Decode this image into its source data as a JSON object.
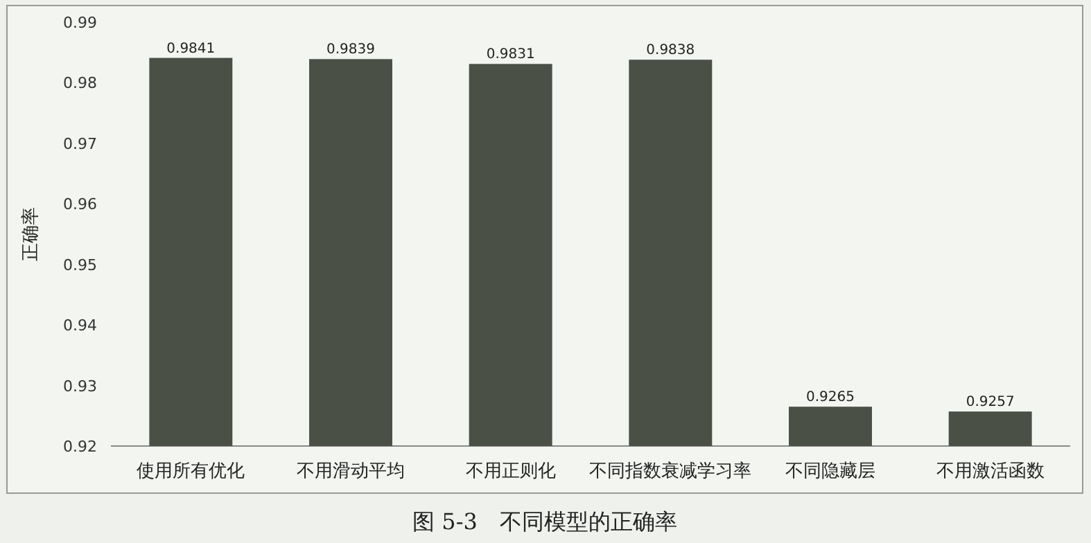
{
  "chart_data": {
    "type": "bar",
    "title": "图 5-3　不同模型的正确率",
    "ylabel": "正确率",
    "categories": [
      "使用所有优化",
      "不用滑动平均",
      "不用正则化",
      "不同指数衰减学习率",
      "不同隐藏层",
      "不用激活函数"
    ],
    "values": [
      0.9841,
      0.9839,
      0.9831,
      0.9838,
      0.9265,
      0.9257
    ],
    "color": "#4b5047",
    "ylim": [
      0.92,
      0.99
    ],
    "yticks": [
      0.92,
      0.93,
      0.94,
      0.95,
      0.96,
      0.97,
      0.98,
      0.99
    ],
    "data_labels": true,
    "grid": false
  }
}
